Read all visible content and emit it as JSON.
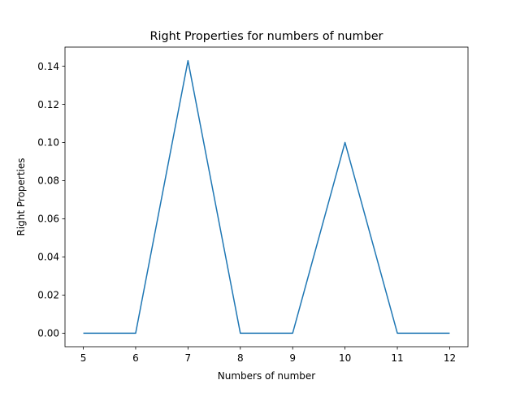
{
  "chart_data": {
    "type": "line",
    "title": "Right Properties for numbers of number",
    "xlabel": "Numbers of number",
    "ylabel": "Right Properties",
    "x": [
      5,
      6,
      7,
      8,
      9,
      10,
      11,
      12
    ],
    "series": [
      {
        "values": [
          0.0,
          0.0,
          0.1429,
          0.0,
          0.0,
          0.1,
          0.0,
          0.0
        ],
        "color": "#1f77b4"
      }
    ],
    "xlim": [
      4.65,
      12.35
    ],
    "ylim": [
      -0.0071,
      0.15
    ],
    "xticks": [
      5,
      6,
      7,
      8,
      9,
      10,
      11,
      12
    ],
    "xtick_labels": [
      "5",
      "6",
      "7",
      "8",
      "9",
      "10",
      "11",
      "12"
    ],
    "yticks": [
      0.0,
      0.02,
      0.04,
      0.06,
      0.08,
      0.1,
      0.12,
      0.14
    ],
    "ytick_labels": [
      "0.00",
      "0.02",
      "0.04",
      "0.06",
      "0.08",
      "0.10",
      "0.12",
      "0.14"
    ],
    "grid": false,
    "legend": "none"
  }
}
